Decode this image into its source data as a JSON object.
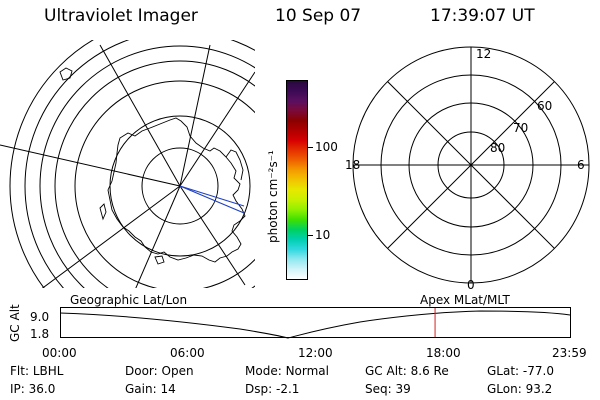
{
  "header": {
    "title": "Ultraviolet Imager",
    "date": "10 Sep 07",
    "time": "17:39:07 UT"
  },
  "colorbar": {
    "unit_label": "photon cm⁻²s⁻¹",
    "ticks": [
      "100",
      "10"
    ],
    "colors": [
      "#2a0840",
      "#3b0a55",
      "#5a0f60",
      "#7a0a3a",
      "#8b0000",
      "#b00000",
      "#d60000",
      "#e63000",
      "#f06000",
      "#f59a00",
      "#f2c400",
      "#e8e800",
      "#c8f000",
      "#90f000",
      "#40e000",
      "#00d060",
      "#00d0b0",
      "#30d8e0",
      "#90e8f0",
      "#d0f4f8",
      "#ffffff"
    ]
  },
  "geo_map": {
    "name": "Geographic Lat/Lon"
  },
  "mag_map": {
    "name": "Apex MLat/MLT",
    "mlt_labels": {
      "top": "12",
      "right": "6",
      "bottom": "0",
      "left": "18"
    },
    "lat_labels": [
      "60",
      "70",
      "80"
    ]
  },
  "altitude_plot": {
    "axis_label": "GC Alt",
    "y_ticks": [
      "9.0",
      "1.8"
    ],
    "x_ticks": [
      "00:00",
      "06:00",
      "12:00",
      "18:00",
      "23:59"
    ],
    "marker_time_hours": 17.65
  },
  "footer": {
    "rows": [
      [
        {
          "k": "Flt:",
          "v": "LBHL"
        },
        {
          "k": "Door:",
          "v": "Open"
        },
        {
          "k": "Mode:",
          "v": "Normal"
        },
        {
          "k": "GC Alt:",
          "v": "8.6 Re"
        },
        {
          "k": "GLat:",
          "v": "-77.0"
        }
      ],
      [
        {
          "k": "IP:",
          "v": "36.0"
        },
        {
          "k": "Gain:",
          "v": "14"
        },
        {
          "k": "Dsp:",
          "v": "-2.1"
        },
        {
          "k": "Seq:",
          "v": "39"
        },
        {
          "k": "GLon:",
          "v": "93.2"
        }
      ]
    ]
  }
}
